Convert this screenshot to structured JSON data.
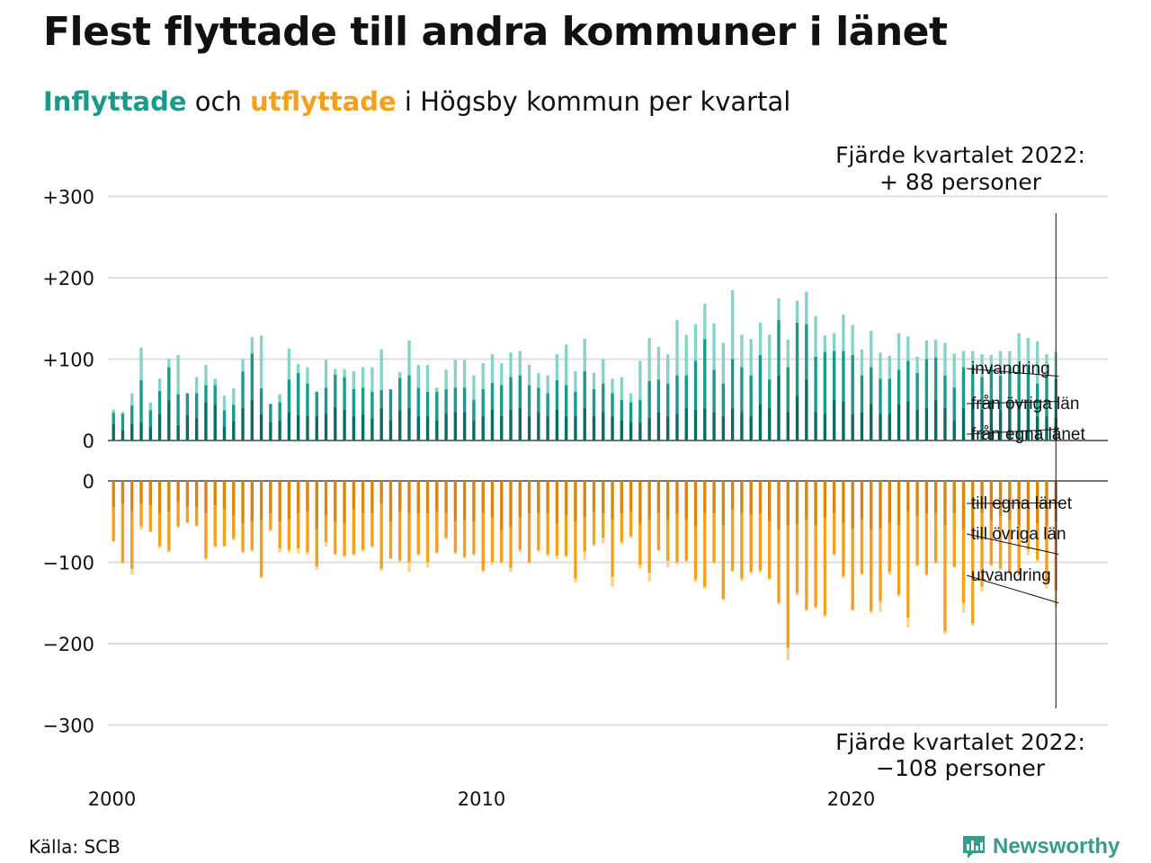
{
  "title": "Flest flyttade till andra kommuner i länet",
  "subtitle": {
    "in_word": "Inflyttade",
    "and_word": " och ",
    "out_word": "utflyttade",
    "rest": " i Högsby kommun per kvartal"
  },
  "source": "Källa: SCB",
  "brand": "Newsworthy",
  "colors": {
    "in_egna": "#0c6b60",
    "in_ovriga": "#1a9a8a",
    "in_invandring": "#88d3c8",
    "out_egna": "#d9850e",
    "out_ovriga": "#f5a01a",
    "out_utvandring": "#f9d490",
    "grid": "#dddddd"
  },
  "chart_data": {
    "type": "bar",
    "x_start": 2000,
    "x_period": "quarter",
    "xticks": [
      "2000",
      "2010",
      "2020"
    ],
    "top_panel": {
      "yticks": [
        "+300",
        "+200",
        "+100",
        "0"
      ],
      "ylim": [
        0,
        300
      ],
      "series": [
        {
          "name": "från egna länet",
          "values": [
            20,
            13,
            20,
            22,
            17,
            33,
            50,
            19,
            31,
            28,
            47,
            44,
            17,
            24,
            40,
            50,
            32,
            23,
            25,
            35,
            31,
            30,
            30,
            33,
            41,
            38,
            30,
            32,
            27,
            40,
            25,
            37,
            40,
            30,
            30,
            25,
            33,
            35,
            35,
            25,
            30,
            38,
            30,
            38,
            40,
            30,
            35,
            30,
            38,
            30,
            30,
            40,
            30,
            35,
            30,
            25,
            23,
            22,
            28,
            35,
            30,
            33,
            40,
            38,
            40,
            35,
            30,
            40,
            35,
            30,
            45,
            40,
            80,
            35,
            55,
            75,
            35,
            33,
            50,
            48,
            33,
            35,
            45,
            33,
            33,
            45,
            48,
            38,
            40,
            50,
            40,
            25,
            40,
            45,
            38,
            50,
            37,
            48,
            45,
            48,
            30,
            30,
            28
          ]
        },
        {
          "name": "från övriga län",
          "values": [
            14,
            20,
            23,
            52,
            20,
            28,
            40,
            38,
            27,
            30,
            21,
            24,
            20,
            20,
            45,
            57,
            32,
            22,
            22,
            40,
            52,
            40,
            30,
            32,
            40,
            40,
            33,
            33,
            33,
            22,
            38,
            40,
            40,
            35,
            30,
            35,
            30,
            30,
            30,
            25,
            33,
            33,
            38,
            40,
            40,
            38,
            30,
            28,
            36,
            38,
            30,
            45,
            33,
            35,
            28,
            25,
            24,
            28,
            45,
            40,
            40,
            47,
            40,
            60,
            85,
            52,
            40,
            60,
            55,
            50,
            60,
            35,
            68,
            55,
            90,
            68,
            68,
            76,
            60,
            62,
            72,
            45,
            45,
            43,
            43,
            42,
            50,
            45,
            60,
            52,
            40,
            40,
            50,
            45,
            40,
            40,
            43,
            42,
            47,
            45,
            40,
            48,
            48
          ]
        },
        {
          "name": "invandring",
          "values": [
            4,
            2,
            15,
            40,
            10,
            15,
            10,
            48,
            0,
            20,
            25,
            8,
            18,
            20,
            15,
            20,
            65,
            0,
            10,
            38,
            11,
            20,
            0,
            34,
            7,
            10,
            22,
            25,
            30,
            50,
            0,
            7,
            43,
            28,
            33,
            5,
            24,
            34,
            34,
            30,
            32,
            35,
            27,
            30,
            30,
            25,
            18,
            22,
            32,
            50,
            25,
            40,
            20,
            30,
            18,
            28,
            11,
            48,
            53,
            40,
            36,
            68,
            50,
            45,
            43,
            57,
            50,
            85,
            40,
            45,
            40,
            55,
            27,
            34,
            27,
            40,
            50,
            20,
            22,
            45,
            37,
            32,
            45,
            32,
            28,
            45,
            30,
            20,
            23,
            22,
            40,
            42,
            20,
            20,
            28,
            15,
            30,
            20,
            40,
            33,
            52,
            28,
            33
          ]
        }
      ]
    },
    "bottom_panel": {
      "yticks": [
        "0",
        "−100",
        "−200",
        "−300"
      ],
      "ylim": [
        -300,
        0
      ],
      "series": [
        {
          "name": "till egna länet",
          "values": [
            -32,
            -28,
            -38,
            -28,
            -30,
            -40,
            -38,
            -26,
            -31,
            -33,
            -40,
            -30,
            -35,
            -43,
            -52,
            -50,
            -48,
            -40,
            -50,
            -47,
            -40,
            -38,
            -60,
            -42,
            -50,
            -52,
            -35,
            -40,
            -40,
            -28,
            -50,
            -38,
            -40,
            -40,
            -40,
            -38,
            -40,
            -50,
            -48,
            -50,
            -40,
            -45,
            -60,
            -57,
            -45,
            -40,
            -40,
            -40,
            -52,
            -42,
            -50,
            -45,
            -38,
            -40,
            -48,
            -40,
            -38,
            -53,
            -48,
            -40,
            -48,
            -40,
            -48,
            -56,
            -40,
            -40,
            -55,
            -35,
            -40,
            -42,
            -40,
            -50,
            -60,
            -55,
            -53,
            -48,
            -55,
            -45,
            -40,
            -52,
            -58,
            -48,
            -60,
            -58,
            -52,
            -55,
            -38,
            -43,
            -40,
            -40,
            -55,
            -40,
            -60,
            -70,
            -40,
            -48,
            -43,
            -48,
            -55,
            -60,
            -52,
            -55,
            -50
          ]
        },
        {
          "name": "till övriga län",
          "values": [
            -42,
            -72,
            -70,
            -28,
            -32,
            -40,
            -48,
            -30,
            -20,
            -22,
            -55,
            -50,
            -45,
            -28,
            -35,
            -35,
            -70,
            -20,
            -33,
            -38,
            -43,
            -50,
            -45,
            -33,
            -40,
            -40,
            -55,
            -45,
            -40,
            -80,
            -45,
            -60,
            -60,
            -50,
            -60,
            -50,
            -30,
            -38,
            -45,
            -40,
            -70,
            -55,
            -40,
            -50,
            -40,
            -60,
            -45,
            -50,
            -40,
            -50,
            -70,
            -42,
            -40,
            -30,
            -70,
            -35,
            -30,
            -50,
            -65,
            -45,
            -50,
            -60,
            -50,
            -65,
            -90,
            -60,
            -90,
            -75,
            -80,
            -70,
            -70,
            -70,
            -90,
            -150,
            -85,
            -110,
            -100,
            -120,
            -50,
            -65,
            -100,
            -66,
            -100,
            -90,
            -60,
            -85,
            -130,
            -60,
            -75,
            -60,
            -130,
            -65,
            -90,
            -105,
            -90,
            -55,
            -65,
            -65,
            -60,
            -25,
            -45,
            -70,
            -85
          ]
        },
        {
          "name": "utvandring",
          "values": [
            -1,
            -2,
            -7,
            -4,
            -1,
            -3,
            -2,
            -2,
            -1,
            -1,
            -2,
            -2,
            -1,
            -2,
            -2,
            -2,
            -2,
            -2,
            -5,
            -3,
            -6,
            -3,
            -4,
            -6,
            -1,
            -2,
            -2,
            -2,
            -2,
            -3,
            -1,
            -2,
            -12,
            -2,
            -6,
            -1,
            -2,
            -2,
            -2,
            -2,
            -2,
            -3,
            -2,
            -5,
            -3,
            -2,
            -2,
            -3,
            -4,
            -2,
            -5,
            -10,
            -2,
            -7,
            -12,
            -3,
            -2,
            -5,
            -10,
            -1,
            -8,
            -3,
            -2,
            -3,
            -3,
            -2,
            -2,
            -2,
            -3,
            -2,
            -3,
            -2,
            -2,
            -15,
            -3,
            -2,
            -2,
            -2,
            -2,
            -3,
            -2,
            -2,
            -3,
            -13,
            -3,
            -2,
            -12,
            -2,
            -2,
            -2,
            -3,
            -2,
            -12,
            -3,
            -6,
            -2,
            -2,
            -2,
            -2,
            -6,
            -3,
            -7,
            -20
          ]
        }
      ]
    },
    "annotations": {
      "top_line1": "Fjärde kvartalet 2022:",
      "top_line2": "+ 88 personer",
      "bottom_line1": "Fjärde kvartalet 2022:",
      "bottom_line2": "−108 personer"
    },
    "series_labels_top": [
      "invandring",
      "från övriga län",
      "från egna länet"
    ],
    "series_labels_bottom": [
      "till egna länet",
      "till övriga län",
      "utvandring"
    ]
  }
}
